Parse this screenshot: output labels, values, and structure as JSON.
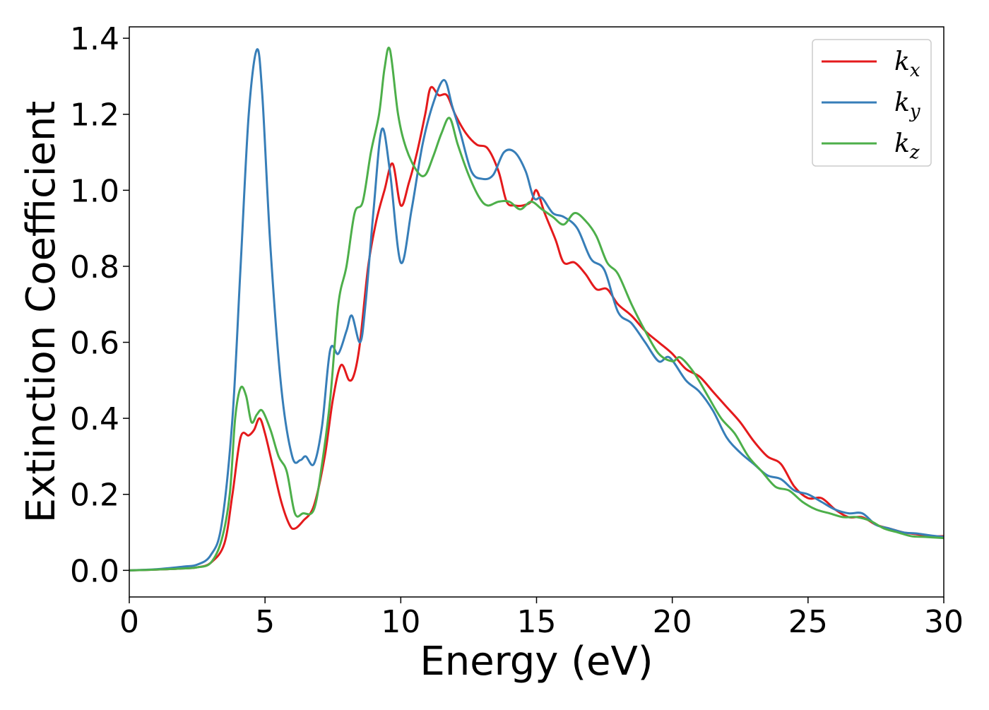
{
  "chart_data": {
    "type": "line",
    "title": "",
    "xlabel": "Energy (eV)",
    "ylabel": "Extinction Coefficient",
    "xlim": [
      0,
      30
    ],
    "ylim": [
      -0.07,
      1.43
    ],
    "xticks": [
      0,
      5,
      10,
      15,
      20,
      25,
      30
    ],
    "xtick_labels": [
      "0",
      "5",
      "10",
      "15",
      "20",
      "25",
      "30"
    ],
    "yticks": [
      0.0,
      0.2,
      0.4,
      0.6,
      0.8,
      1.0,
      1.2,
      1.4
    ],
    "ytick_labels": [
      "0.0",
      "0.2",
      "0.4",
      "0.6",
      "0.8",
      "1.0",
      "1.2",
      "1.4"
    ],
    "grid": false,
    "legend": {
      "placement": "top-right"
    },
    "series": [
      {
        "name": "k_x",
        "label_base": "k",
        "label_sub": "x",
        "color": "#e41a1c",
        "points": [
          [
            0,
            0
          ],
          [
            1,
            0.002
          ],
          [
            2,
            0.005
          ],
          [
            2.5,
            0.008
          ],
          [
            3,
            0.02
          ],
          [
            3.5,
            0.07
          ],
          [
            3.8,
            0.2
          ],
          [
            4.1,
            0.35
          ],
          [
            4.4,
            0.355
          ],
          [
            4.6,
            0.37
          ],
          [
            4.8,
            0.4
          ],
          [
            5,
            0.36
          ],
          [
            5.3,
            0.27
          ],
          [
            5.6,
            0.18
          ],
          [
            5.9,
            0.12
          ],
          [
            6.1,
            0.11
          ],
          [
            6.4,
            0.13
          ],
          [
            6.8,
            0.17
          ],
          [
            7.2,
            0.3
          ],
          [
            7.5,
            0.45
          ],
          [
            7.8,
            0.54
          ],
          [
            8.1,
            0.5
          ],
          [
            8.3,
            0.52
          ],
          [
            8.5,
            0.6
          ],
          [
            8.8,
            0.8
          ],
          [
            9.1,
            0.92
          ],
          [
            9.4,
            1.0
          ],
          [
            9.7,
            1.07
          ],
          [
            10,
            0.96
          ],
          [
            10.3,
            1.02
          ],
          [
            10.6,
            1.1
          ],
          [
            10.9,
            1.2
          ],
          [
            11.1,
            1.27
          ],
          [
            11.4,
            1.25
          ],
          [
            11.7,
            1.25
          ],
          [
            12,
            1.2
          ],
          [
            12.4,
            1.15
          ],
          [
            12.8,
            1.12
          ],
          [
            13.2,
            1.11
          ],
          [
            13.6,
            1.05
          ],
          [
            13.9,
            0.97
          ],
          [
            14.2,
            0.96
          ],
          [
            14.5,
            0.96
          ],
          [
            14.8,
            0.97
          ],
          [
            15,
            1.0
          ],
          [
            15.3,
            0.94
          ],
          [
            15.7,
            0.87
          ],
          [
            16,
            0.81
          ],
          [
            16.4,
            0.81
          ],
          [
            16.8,
            0.78
          ],
          [
            17.2,
            0.74
          ],
          [
            17.6,
            0.74
          ],
          [
            18,
            0.7
          ],
          [
            18.5,
            0.67
          ],
          [
            19,
            0.63
          ],
          [
            19.5,
            0.6
          ],
          [
            20,
            0.57
          ],
          [
            20.5,
            0.53
          ],
          [
            21,
            0.51
          ],
          [
            21.5,
            0.47
          ],
          [
            22,
            0.43
          ],
          [
            22.5,
            0.39
          ],
          [
            23,
            0.34
          ],
          [
            23.5,
            0.3
          ],
          [
            24,
            0.28
          ],
          [
            24.5,
            0.22
          ],
          [
            25,
            0.19
          ],
          [
            25.5,
            0.19
          ],
          [
            26,
            0.16
          ],
          [
            26.5,
            0.14
          ],
          [
            27,
            0.14
          ],
          [
            27.5,
            0.12
          ],
          [
            28,
            0.11
          ],
          [
            28.5,
            0.1
          ],
          [
            29,
            0.095
          ],
          [
            29.5,
            0.09
          ],
          [
            30,
            0.09
          ]
        ]
      },
      {
        "name": "k_y",
        "label_base": "k",
        "label_sub": "y",
        "color": "#377eb8",
        "points": [
          [
            0,
            0
          ],
          [
            1,
            0.003
          ],
          [
            2,
            0.01
          ],
          [
            2.5,
            0.015
          ],
          [
            3,
            0.04
          ],
          [
            3.4,
            0.12
          ],
          [
            3.8,
            0.4
          ],
          [
            4.1,
            0.8
          ],
          [
            4.4,
            1.2
          ],
          [
            4.7,
            1.37
          ],
          [
            4.9,
            1.25
          ],
          [
            5.2,
            0.85
          ],
          [
            5.6,
            0.48
          ],
          [
            6,
            0.3
          ],
          [
            6.3,
            0.29
          ],
          [
            6.5,
            0.3
          ],
          [
            6.8,
            0.28
          ],
          [
            7.1,
            0.38
          ],
          [
            7.4,
            0.58
          ],
          [
            7.7,
            0.57
          ],
          [
            8,
            0.63
          ],
          [
            8.2,
            0.67
          ],
          [
            8.5,
            0.6
          ],
          [
            8.7,
            0.7
          ],
          [
            9,
            0.95
          ],
          [
            9.3,
            1.16
          ],
          [
            9.6,
            1.05
          ],
          [
            10,
            0.81
          ],
          [
            10.4,
            0.95
          ],
          [
            10.8,
            1.12
          ],
          [
            11.2,
            1.23
          ],
          [
            11.6,
            1.29
          ],
          [
            11.9,
            1.22
          ],
          [
            12.2,
            1.15
          ],
          [
            12.6,
            1.05
          ],
          [
            13,
            1.03
          ],
          [
            13.4,
            1.04
          ],
          [
            13.8,
            1.1
          ],
          [
            14.2,
            1.1
          ],
          [
            14.6,
            1.05
          ],
          [
            14.9,
            0.98
          ],
          [
            15.2,
            0.98
          ],
          [
            15.6,
            0.94
          ],
          [
            16,
            0.93
          ],
          [
            16.5,
            0.9
          ],
          [
            17,
            0.82
          ],
          [
            17.5,
            0.79
          ],
          [
            18,
            0.68
          ],
          [
            18.5,
            0.65
          ],
          [
            19,
            0.6
          ],
          [
            19.5,
            0.55
          ],
          [
            19.9,
            0.56
          ],
          [
            20.5,
            0.5
          ],
          [
            21,
            0.47
          ],
          [
            21.5,
            0.42
          ],
          [
            22,
            0.35
          ],
          [
            22.5,
            0.31
          ],
          [
            23,
            0.28
          ],
          [
            23.5,
            0.25
          ],
          [
            24,
            0.24
          ],
          [
            24.5,
            0.21
          ],
          [
            25,
            0.2
          ],
          [
            25.5,
            0.18
          ],
          [
            26,
            0.16
          ],
          [
            26.5,
            0.15
          ],
          [
            27,
            0.15
          ],
          [
            27.5,
            0.12
          ],
          [
            28,
            0.11
          ],
          [
            28.5,
            0.1
          ],
          [
            29,
            0.097
          ],
          [
            29.5,
            0.092
          ],
          [
            30,
            0.088
          ]
        ]
      },
      {
        "name": "k_z",
        "label_base": "k",
        "label_sub": "z",
        "color": "#4daf4a",
        "points": [
          [
            0,
            0
          ],
          [
            1,
            0.002
          ],
          [
            2,
            0.005
          ],
          [
            2.5,
            0.008
          ],
          [
            3,
            0.02
          ],
          [
            3.4,
            0.08
          ],
          [
            3.7,
            0.2
          ],
          [
            3.9,
            0.4
          ],
          [
            4.1,
            0.48
          ],
          [
            4.3,
            0.46
          ],
          [
            4.5,
            0.39
          ],
          [
            4.7,
            0.41
          ],
          [
            4.9,
            0.42
          ],
          [
            5.2,
            0.37
          ],
          [
            5.5,
            0.3
          ],
          [
            5.8,
            0.26
          ],
          [
            6.1,
            0.15
          ],
          [
            6.4,
            0.15
          ],
          [
            6.8,
            0.16
          ],
          [
            7.1,
            0.28
          ],
          [
            7.4,
            0.45
          ],
          [
            7.7,
            0.7
          ],
          [
            8,
            0.8
          ],
          [
            8.3,
            0.94
          ],
          [
            8.6,
            0.97
          ],
          [
            8.9,
            1.1
          ],
          [
            9.2,
            1.2
          ],
          [
            9.4,
            1.32
          ],
          [
            9.6,
            1.37
          ],
          [
            9.9,
            1.2
          ],
          [
            10.2,
            1.11
          ],
          [
            10.6,
            1.05
          ],
          [
            10.9,
            1.04
          ],
          [
            11.2,
            1.09
          ],
          [
            11.5,
            1.15
          ],
          [
            11.8,
            1.19
          ],
          [
            12.1,
            1.12
          ],
          [
            12.5,
            1.04
          ],
          [
            12.9,
            0.98
          ],
          [
            13.2,
            0.96
          ],
          [
            13.6,
            0.97
          ],
          [
            14,
            0.97
          ],
          [
            14.4,
            0.95
          ],
          [
            14.8,
            0.97
          ],
          [
            15.2,
            0.95
          ],
          [
            15.6,
            0.93
          ],
          [
            16,
            0.91
          ],
          [
            16.4,
            0.94
          ],
          [
            16.8,
            0.92
          ],
          [
            17.2,
            0.88
          ],
          [
            17.6,
            0.81
          ],
          [
            18,
            0.78
          ],
          [
            18.5,
            0.7
          ],
          [
            19,
            0.63
          ],
          [
            19.5,
            0.57
          ],
          [
            20,
            0.55
          ],
          [
            20.3,
            0.56
          ],
          [
            20.8,
            0.52
          ],
          [
            21.3,
            0.46
          ],
          [
            21.8,
            0.4
          ],
          [
            22.3,
            0.36
          ],
          [
            22.8,
            0.3
          ],
          [
            23.3,
            0.26
          ],
          [
            23.8,
            0.22
          ],
          [
            24.3,
            0.21
          ],
          [
            24.8,
            0.18
          ],
          [
            25.3,
            0.16
          ],
          [
            25.8,
            0.15
          ],
          [
            26.3,
            0.14
          ],
          [
            26.8,
            0.14
          ],
          [
            27.3,
            0.13
          ],
          [
            27.8,
            0.11
          ],
          [
            28.3,
            0.1
          ],
          [
            28.8,
            0.09
          ],
          [
            29.3,
            0.088
          ],
          [
            30,
            0.085
          ]
        ]
      }
    ]
  }
}
